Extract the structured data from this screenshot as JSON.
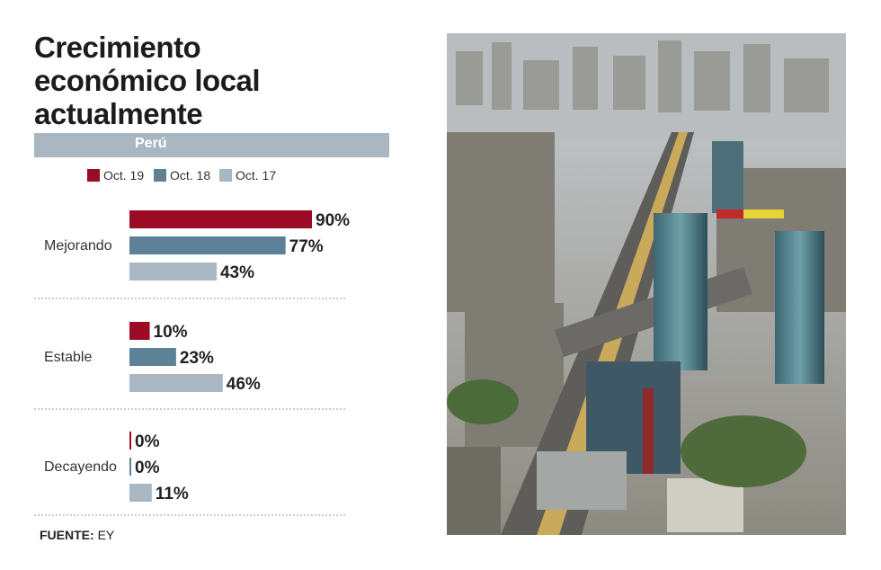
{
  "title_lines": [
    "Crecimiento",
    "económico local",
    "actualmente"
  ],
  "country": "Perú",
  "footer": {
    "label": "FUENTE:",
    "value": "EY"
  },
  "colors": {
    "oct19": "#9b0b25",
    "oct18": "#5d8196",
    "oct17": "#a9b7c2",
    "country_bar": "#a9b7c2"
  },
  "chart_data": {
    "type": "bar",
    "orientation": "horizontal",
    "title": "Crecimiento económico local actualmente",
    "subtitle": "Perú",
    "categories": [
      "Mejorando",
      "Estable",
      "Decayendo"
    ],
    "series": [
      {
        "name": "Oct. 19",
        "color": "#9b0b25",
        "values": [
          90,
          10,
          0
        ]
      },
      {
        "name": "Oct. 18",
        "color": "#5d8196",
        "values": [
          77,
          23,
          0
        ]
      },
      {
        "name": "Oct. 17",
        "color": "#a9b7c2",
        "values": [
          43,
          46,
          11
        ]
      }
    ],
    "value_suffix": "%",
    "xlim": [
      0,
      100
    ],
    "grid": false,
    "legend_position": "top"
  },
  "photo": {
    "description": "Aerial view of city skyline with highway and towers",
    "icon": "city-photo"
  }
}
